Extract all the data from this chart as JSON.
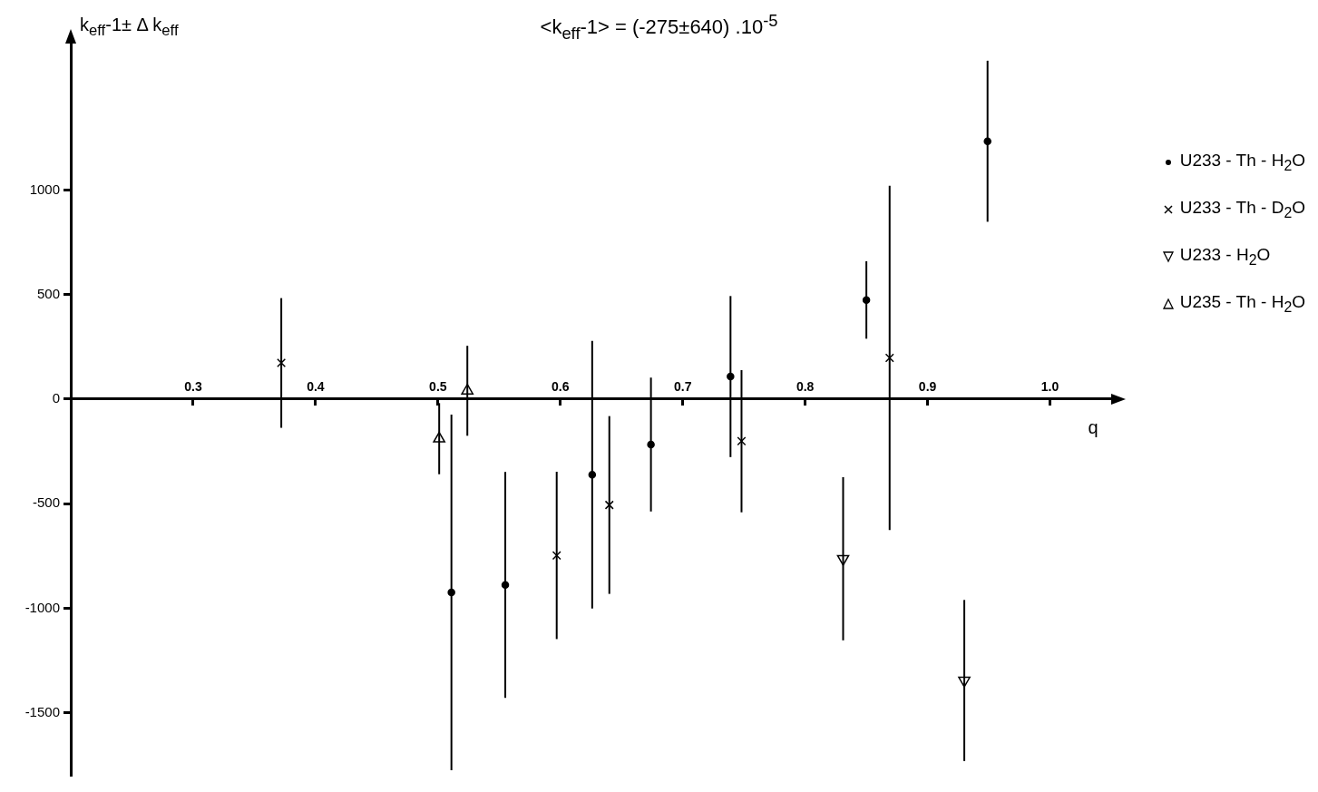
{
  "chart_data": {
    "type": "scatter",
    "title": "<k$_{eff}$-1> = (-275±640) .10$^{-5}$",
    "xlabel": "q",
    "ylabel": "k$_{eff}$-1± Δ k$_{eff}$",
    "xlim": [
      0.2,
      1.05
    ],
    "xticks": [
      0.3,
      0.4,
      0.5,
      0.6,
      0.7,
      0.8,
      0.9,
      {
        "value": 1,
        "label": "1.0"
      }
    ],
    "ylim": [
      -1800,
      1700
    ],
    "yticks": [
      -1500,
      -1000,
      -500,
      0,
      500,
      1000
    ],
    "grid": false,
    "legend": "top right",
    "series": [
      {
        "name": "U233 - Th - H$_{2}$O",
        "color": "#000000",
        "marker": "circle",
        "x": [
          0.511,
          0.555,
          0.626,
          0.674,
          0.739,
          0.85,
          0.949
        ],
        "values": [
          -924,
          -888,
          -361,
          -217,
          108,
          474,
          1233
        ],
        "errors": [
          850,
          540,
          640,
          320,
          385,
          185,
          385
        ]
      },
      {
        "name": "U233 - Th - D$_{2}$O",
        "color": "#000000",
        "marker": "cross",
        "x": [
          0.372,
          0.597,
          0.64,
          0.748,
          0.869
        ],
        "values": [
          173,
          -747,
          -506,
          -201,
          197
        ],
        "errors": [
          310,
          400,
          425,
          340,
          823
        ]
      },
      {
        "name": "U233 - H$_{2}$O",
        "color": "#000000",
        "marker": "triangle-down",
        "x": [
          0.831,
          0.93
        ],
        "values": [
          -763,
          -1345
        ],
        "errors": [
          390,
          385
        ]
      },
      {
        "name": "U235 - Th - H$_{2}$O",
        "color": "#000000",
        "marker": "triangle",
        "x": [
          0.501,
          0.524
        ],
        "values": [
          -189,
          40
        ],
        "errors": [
          170,
          215
        ]
      }
    ]
  }
}
